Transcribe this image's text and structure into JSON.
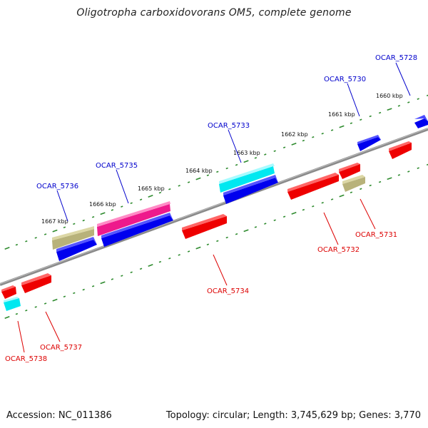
{
  "title": "Oligotropha carboxidovorans OM5, complete genome",
  "footer": {
    "accession": "Accession: NC_011386",
    "summary": "Topology: circular; Length: 3,745,629 bp; Genes: 3,770"
  },
  "colors": {
    "backbone": "#808080",
    "ticks": "#2e8b2e",
    "forward_label": "#0000cc",
    "reverse_label": "#dd0000",
    "blue": "#0000ee",
    "red": "#ee0000",
    "cyan": "#00e8f0",
    "magenta": "#ee1a8c",
    "khaki": "#b8b27a"
  },
  "ruler_labels": [
    "1660 kbp",
    "1661 kbp",
    "1662 kbp",
    "1663 kbp",
    "1664 kbp",
    "1665 kbp",
    "1666 kbp",
    "1667 kbp"
  ],
  "forward_gene_labels": [
    "OCAR_5728",
    "OCAR_5730",
    "OCAR_5733",
    "OCAR_5735",
    "OCAR_5736"
  ],
  "reverse_gene_labels": [
    "OCAR_5731",
    "OCAR_5732",
    "OCAR_5734",
    "OCAR_5737",
    "OCAR_5738"
  ]
}
